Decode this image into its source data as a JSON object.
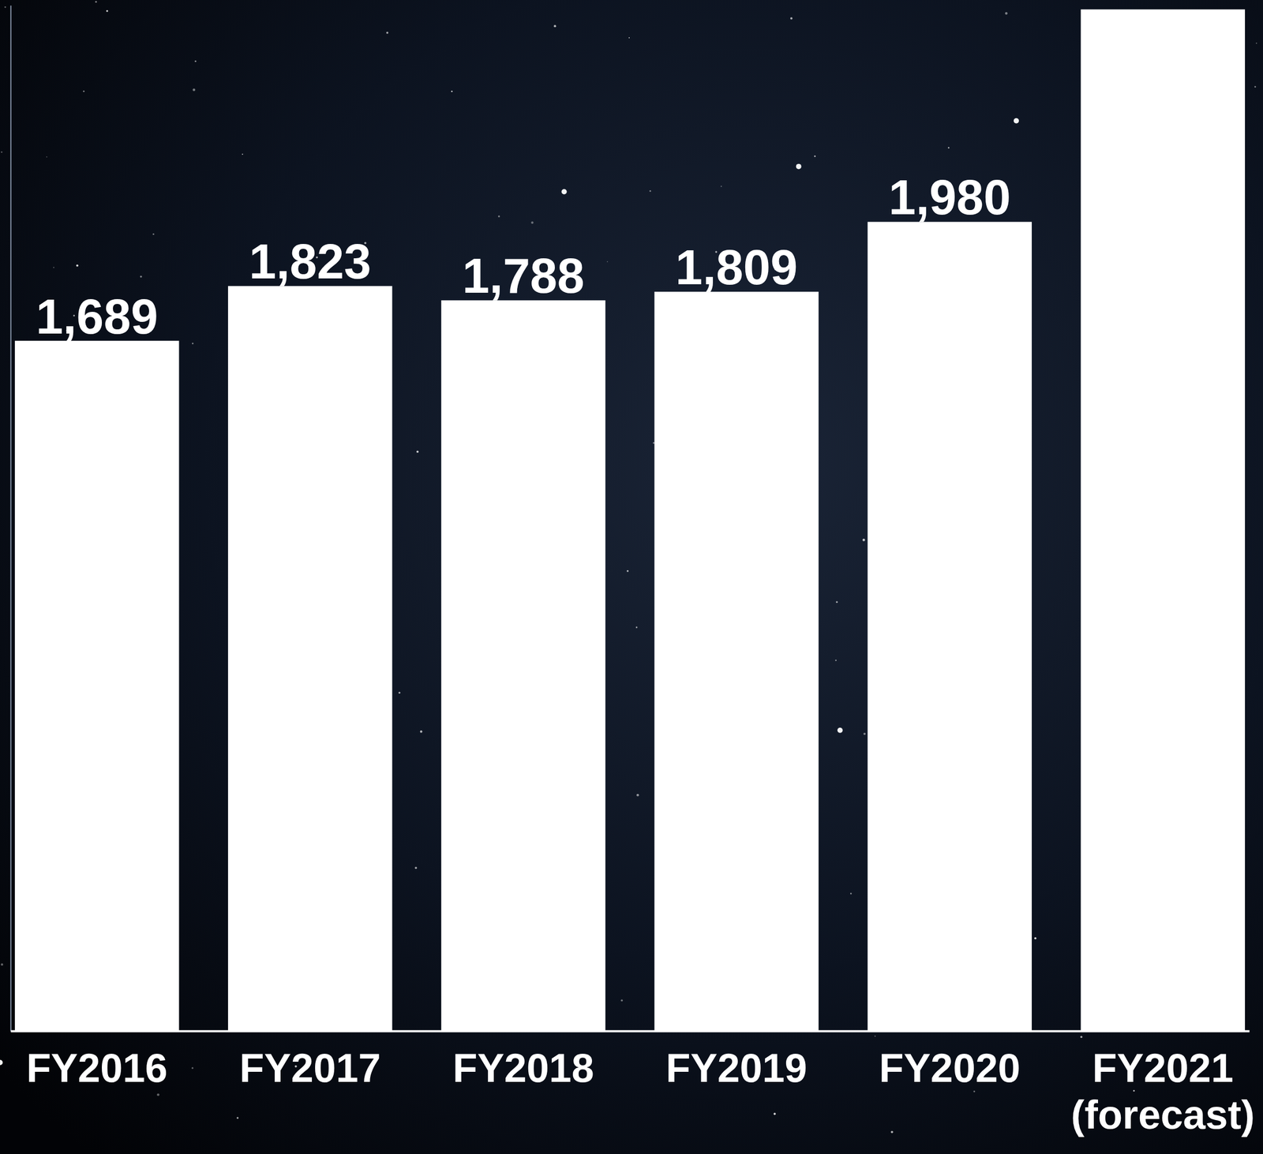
{
  "chart_data": {
    "type": "bar",
    "categories": [
      "FY2016",
      "FY2017",
      "FY2018",
      "FY2019",
      "FY2020",
      "FY2021 (forecast)"
    ],
    "values": [
      1689,
      1823,
      1788,
      1809,
      1980,
      2500
    ],
    "value_labels": [
      "1,689",
      "1,823",
      "1,788",
      "1,809",
      "1,980",
      null
    ],
    "color": "#ffffff",
    "ylim": [
      0,
      2510
    ],
    "yticks": [],
    "data_labels": true,
    "tick_labels": "x",
    "grid": false
  }
}
